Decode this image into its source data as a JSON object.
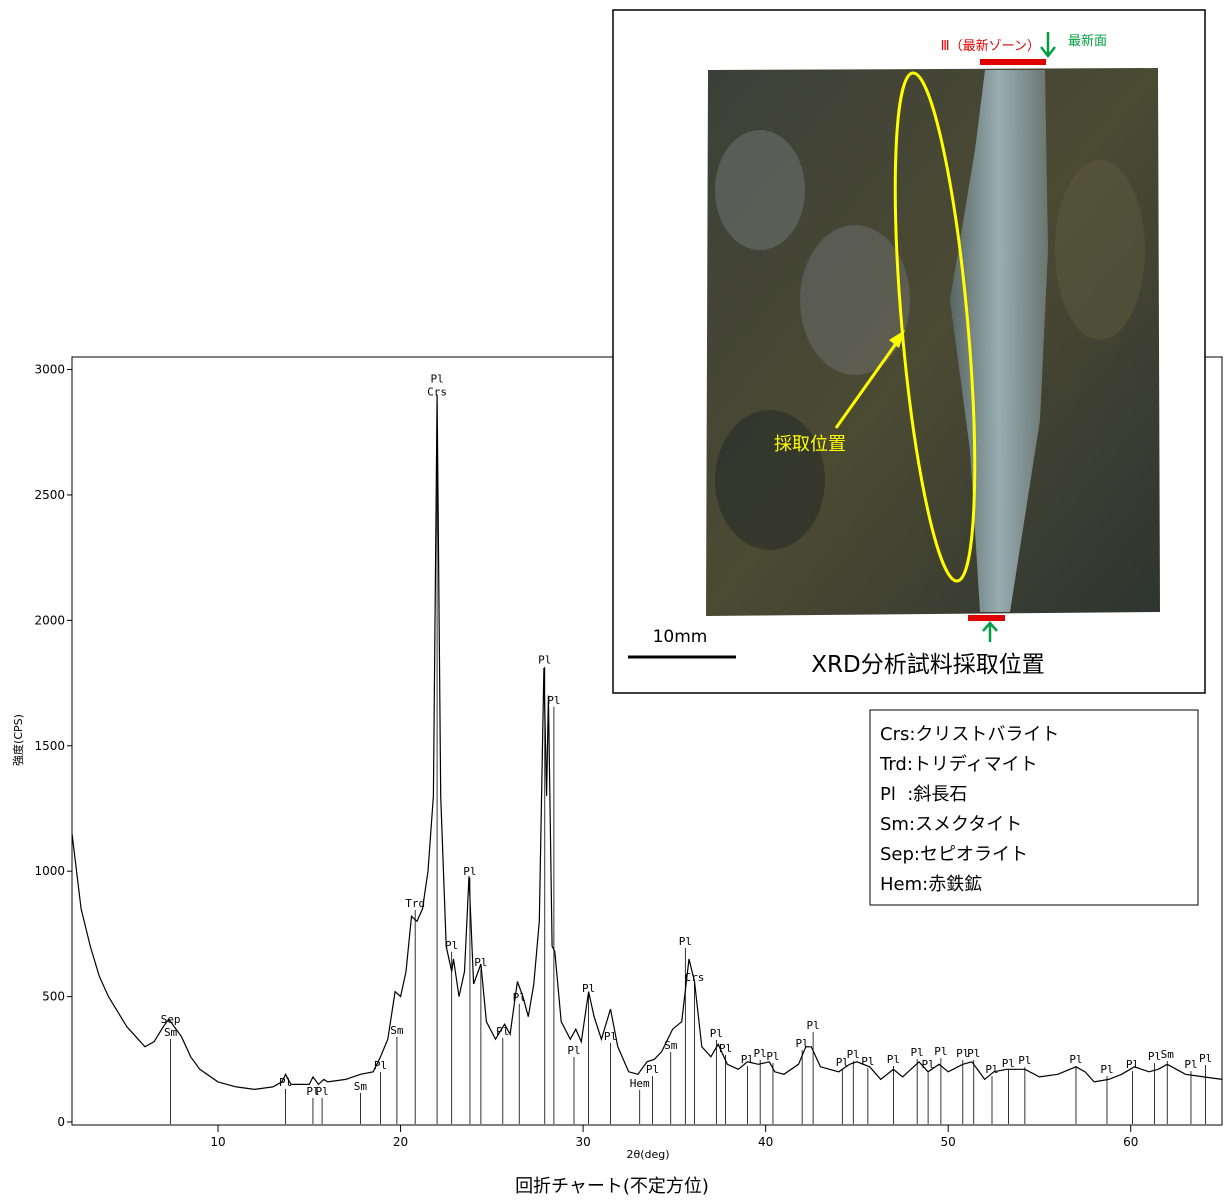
{
  "chart_data": {
    "type": "line",
    "x_label": "2θ(deg)",
    "y_label": "強度(CPS)",
    "caption": "回折チャート(不定方位)",
    "xlim": [
      2,
      65
    ],
    "ylim": [
      0,
      3050
    ],
    "xticks": [
      10,
      20,
      30,
      40,
      50,
      60
    ],
    "yticks": [
      0,
      500,
      1000,
      1500,
      2000,
      2500,
      3000
    ],
    "x": [
      2,
      2.5,
      3,
      3.5,
      4,
      5,
      6,
      6.5,
      7,
      7.3,
      8,
      8.5,
      9,
      10,
      11,
      12,
      13,
      13.5,
      13.7,
      14,
      15,
      15.2,
      15.5,
      15.8,
      16,
      17,
      17.8,
      18.5,
      18.9,
      19.3,
      19.7,
      20,
      20.3,
      20.6,
      20.9,
      21.2,
      21.5,
      21.8,
      22,
      22.2,
      22.5,
      22.8,
      22.9,
      23.2,
      23.5,
      23.75,
      24,
      24.4,
      24.7,
      25.2,
      25.7,
      26,
      26.4,
      26.7,
      27,
      27.3,
      27.6,
      27.85,
      28,
      28.1,
      28.3,
      28.45,
      28.8,
      29.3,
      29.6,
      29.9,
      30.3,
      30.6,
      31,
      31.5,
      31.9,
      32.5,
      33,
      33.5,
      33.9,
      34.3,
      34.9,
      35.4,
      35.8,
      36.1,
      36.5,
      37,
      37.4,
      37.9,
      38.5,
      39,
      39.6,
      40.2,
      40.5,
      41,
      41.8,
      42.2,
      42.5,
      43,
      44,
      44.6,
      45,
      45.7,
      46.3,
      47,
      47.5,
      48.4,
      48.9,
      49.5,
      50,
      50.8,
      51.3,
      52,
      52.5,
      53.2,
      54.2,
      55,
      56,
      57,
      57.5,
      58,
      58.8,
      59.5,
      60.2,
      61,
      61.5,
      62,
      62.5,
      63,
      64,
      65
    ],
    "series": [
      {
        "color": "#000000",
        "values": [
          1150,
          850,
          700,
          580,
          500,
          380,
          300,
          320,
          380,
          410,
          340,
          260,
          210,
          160,
          140,
          130,
          140,
          160,
          190,
          150,
          150,
          180,
          150,
          170,
          160,
          170,
          190,
          200,
          260,
          330,
          520,
          500,
          600,
          820,
          800,
          850,
          1000,
          1300,
          2900,
          1300,
          700,
          600,
          650,
          500,
          600,
          980,
          550,
          630,
          400,
          330,
          390,
          350,
          560,
          500,
          420,
          550,
          800,
          1810,
          1300,
          1700,
          700,
          680,
          400,
          330,
          370,
          320,
          520,
          420,
          330,
          450,
          300,
          200,
          190,
          240,
          250,
          280,
          370,
          400,
          650,
          560,
          300,
          260,
          310,
          230,
          210,
          240,
          230,
          240,
          200,
          190,
          230,
          300,
          300,
          220,
          200,
          230,
          240,
          220,
          170,
          210,
          180,
          240,
          200,
          230,
          200,
          230,
          240,
          170,
          200,
          210,
          210,
          180,
          190,
          220,
          200,
          160,
          170,
          190,
          220,
          200,
          210,
          230,
          210,
          190,
          180,
          170
        ]
      }
    ],
    "annotations": [
      {
        "x": 7.4,
        "y": 359,
        "labels": [
          "Sep",
          "Sm"
        ]
      },
      {
        "x": 13.7,
        "y": 160,
        "labels": [
          "Pl"
        ]
      },
      {
        "x": 15.2,
        "y": 124,
        "labels": [
          "Pl"
        ]
      },
      {
        "x": 15.7,
        "y": 124,
        "labels": [
          "Pl"
        ]
      },
      {
        "x": 17.8,
        "y": 144,
        "labels": [
          "Sm"
        ]
      },
      {
        "x": 18.9,
        "y": 227,
        "labels": [
          "Pl"
        ]
      },
      {
        "x": 19.8,
        "y": 367,
        "labels": [
          "Sm"
        ]
      },
      {
        "x": 20.8,
        "y": 873,
        "labels": [
          "Trd"
        ]
      },
      {
        "x": 22.0,
        "y": 2912,
        "labels": [
          "Pl",
          "Crs"
        ]
      },
      {
        "x": 22.8,
        "y": 706,
        "labels": [
          "Pl"
        ]
      },
      {
        "x": 23.8,
        "y": 1001,
        "labels": [
          "Pl"
        ]
      },
      {
        "x": 24.4,
        "y": 638,
        "labels": [
          "Pl"
        ]
      },
      {
        "x": 25.6,
        "y": 363,
        "labels": [
          "Pl"
        ]
      },
      {
        "x": 26.5,
        "y": 499,
        "labels": [
          "Pl"
        ]
      },
      {
        "x": 27.9,
        "y": 1843,
        "labels": [
          "Pl"
        ]
      },
      {
        "x": 28.4,
        "y": 1683,
        "labels": [
          "Pl"
        ]
      },
      {
        "x": 29.5,
        "y": 287,
        "labels": [
          "Pl"
        ]
      },
      {
        "x": 30.3,
        "y": 534,
        "labels": [
          "Pl"
        ]
      },
      {
        "x": 31.5,
        "y": 343,
        "labels": [
          "Pl"
        ]
      },
      {
        "x": 33.1,
        "y": 156,
        "labels": [
          "Hem"
        ]
      },
      {
        "x": 33.8,
        "y": 211,
        "labels": [
          "Pl"
        ]
      },
      {
        "x": 34.8,
        "y": 307,
        "labels": [
          "Sm"
        ]
      },
      {
        "x": 35.6,
        "y": 722,
        "labels": [
          "Pl"
        ]
      },
      {
        "x": 36.1,
        "y": 578,
        "labels": [
          "Crs"
        ]
      },
      {
        "x": 37.3,
        "y": 355,
        "labels": [
          "Pl"
        ]
      },
      {
        "x": 37.8,
        "y": 295,
        "labels": [
          "Pl"
        ]
      },
      {
        "x": 39.0,
        "y": 251,
        "labels": [
          "Pl"
        ]
      },
      {
        "x": 39.7,
        "y": 275,
        "labels": [
          "Pl"
        ]
      },
      {
        "x": 40.4,
        "y": 263,
        "labels": [
          "Pl"
        ]
      },
      {
        "x": 42.0,
        "y": 315,
        "labels": [
          "Pl"
        ]
      },
      {
        "x": 42.6,
        "y": 387,
        "labels": [
          "Pl"
        ]
      },
      {
        "x": 44.2,
        "y": 239,
        "labels": [
          "Pl"
        ]
      },
      {
        "x": 44.8,
        "y": 271,
        "labels": [
          "Pl"
        ]
      },
      {
        "x": 45.6,
        "y": 243,
        "labels": [
          "Pl"
        ]
      },
      {
        "x": 47.0,
        "y": 251,
        "labels": [
          "Pl"
        ]
      },
      {
        "x": 48.3,
        "y": 279,
        "labels": [
          "Pl"
        ]
      },
      {
        "x": 48.9,
        "y": 231,
        "labels": [
          "Pl"
        ]
      },
      {
        "x": 49.6,
        "y": 283,
        "labels": [
          "Pl"
        ]
      },
      {
        "x": 50.8,
        "y": 275,
        "labels": [
          "Pl"
        ]
      },
      {
        "x": 51.4,
        "y": 275,
        "labels": [
          "Pl"
        ]
      },
      {
        "x": 52.4,
        "y": 211,
        "labels": [
          "Pl"
        ]
      },
      {
        "x": 53.3,
        "y": 235,
        "labels": [
          "Pl"
        ]
      },
      {
        "x": 54.2,
        "y": 247,
        "labels": [
          "Pl"
        ]
      },
      {
        "x": 57.0,
        "y": 251,
        "labels": [
          "Pl"
        ]
      },
      {
        "x": 58.7,
        "y": 211,
        "labels": [
          "Pl"
        ]
      },
      {
        "x": 60.1,
        "y": 231,
        "labels": [
          "Pl"
        ]
      },
      {
        "x": 61.3,
        "y": 263,
        "labels": [
          "Pl"
        ]
      },
      {
        "x": 62.0,
        "y": 271,
        "labels": [
          "Sm"
        ]
      },
      {
        "x": 63.3,
        "y": 231,
        "labels": [
          "Pl"
        ]
      },
      {
        "x": 64.1,
        "y": 255,
        "labels": [
          "Pl"
        ]
      }
    ]
  },
  "inset": {
    "zone_label": "Ⅲ（最新ゾーン）",
    "surface_label": "最新面",
    "sampling_label": "採取位置",
    "scale_label": "10mm",
    "caption": "XRD分析試料採取位置"
  },
  "legend_box": {
    "lines": [
      "Crs:クリストバライト",
      "Trd:トリディマイト",
      "Pl  :斜長石",
      "Sm:スメクタイト",
      "Sep:セピオライト",
      "Hem:赤鉄鉱"
    ]
  }
}
